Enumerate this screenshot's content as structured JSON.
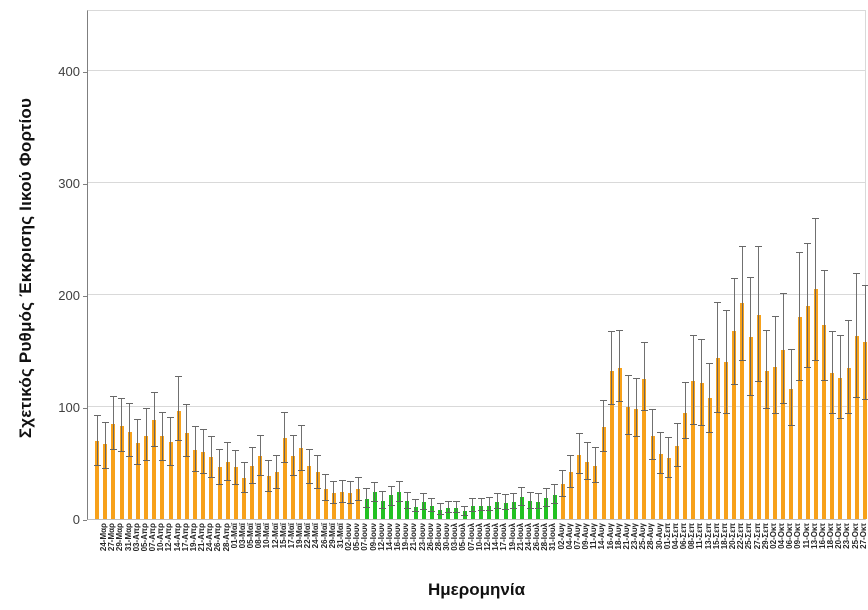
{
  "chart_data": {
    "type": "bar",
    "title": "",
    "xlabel": "Ημερομηνία",
    "ylabel": "Σχετικός Ρυθμός Έκκρισης Ιικού Φορτίου",
    "ylim": [
      0,
      455
    ],
    "yticks": [
      0,
      100,
      200,
      300,
      400
    ],
    "grid": true,
    "legend_position": "none",
    "error_bars": true,
    "bar_colors": {
      "O": "#F7A11A",
      "G": "#22C122"
    },
    "error_color": "#666666",
    "categories": [
      "24-Μαρ",
      "27-Μαρ",
      "29-Μαρ",
      "31-Μαρ",
      "03-Απρ",
      "05-Απρ",
      "07-Απρ",
      "10-Απρ",
      "12-Απρ",
      "14-Απρ",
      "17-Απρ",
      "19-Απρ",
      "21-Απρ",
      "24-Απρ",
      "26-Απρ",
      "28-Απρ",
      "01-Μαϊ",
      "03-Μαϊ",
      "05-Μαϊ",
      "08-Μαϊ",
      "10-Μαϊ",
      "12-Μαϊ",
      "15-Μαϊ",
      "17-Μαϊ",
      "19-Μαϊ",
      "22-Μαϊ",
      "24-Μαϊ",
      "26-Μαϊ",
      "29-Μαϊ",
      "31-Μαϊ",
      "02-Ιουν",
      "05-Ιουν",
      "07-Ιουν",
      "09-Ιουν",
      "12-Ιουν",
      "14-Ιουν",
      "16-Ιουν",
      "19-Ιουν",
      "21-Ιουν",
      "23-Ιουν",
      "26-Ιουν",
      "28-Ιουν",
      "30-Ιουν",
      "03-Ιουλ",
      "05-Ιουλ",
      "07-Ιουλ",
      "10-Ιουλ",
      "12-Ιουλ",
      "14-Ιουλ",
      "17-Ιουλ",
      "19-Ιουλ",
      "21-Ιουλ",
      "24-Ιουλ",
      "26-Ιουλ",
      "28-Ιουλ",
      "31-Ιουλ",
      "02-Αυγ",
      "04-Αυγ",
      "07-Αυγ",
      "09-Αυγ",
      "11-Αυγ",
      "14-Αυγ",
      "16-Αυγ",
      "18-Αυγ",
      "21-Αυγ",
      "23-Αυγ",
      "25-Αυγ",
      "28-Αυγ",
      "30-Αυγ",
      "01-Σεπ",
      "04-Σεπ",
      "06-Σεπ",
      "08-Σεπ",
      "11-Σεπ",
      "13-Σεπ",
      "15-Σεπ",
      "18-Σεπ",
      "20-Σεπ",
      "22-Σεπ",
      "25-Σεπ",
      "27-Σεπ",
      "29-Σεπ",
      "02-Οκτ",
      "04-Οκτ",
      "06-Οκτ",
      "09-Οκτ",
      "11-Οκτ",
      "13-Οκτ",
      "16-Οκτ",
      "18-Οκτ",
      "20-Οκτ",
      "23-Οκτ",
      "25-Οκτ",
      "27-Οκτ",
      "30-Οκτ"
    ],
    "values": [
      70,
      67,
      85,
      83,
      78,
      68,
      74,
      88,
      74,
      69,
      96,
      77,
      62,
      60,
      55,
      46,
      51,
      46,
      37,
      47,
      56,
      38,
      42,
      72,
      56,
      63,
      47,
      42,
      27,
      23,
      24,
      23,
      27,
      18,
      24,
      16,
      21,
      24,
      16,
      11,
      15,
      12,
      8,
      10,
      10,
      7,
      12,
      12,
      12,
      15,
      14,
      15,
      20,
      16,
      15,
      19,
      21,
      31,
      42,
      57,
      51,
      47,
      82,
      132,
      135,
      100,
      98,
      125,
      74,
      58,
      54,
      65,
      95,
      123,
      121,
      108,
      144,
      140,
      168,
      193,
      162,
      182,
      132,
      136,
      151,
      116,
      180,
      190,
      205,
      173,
      130,
      126,
      135,
      163,
      158
    ],
    "error_low": [
      47,
      45,
      62,
      60,
      55,
      48,
      52,
      64,
      52,
      47,
      70,
      55,
      42,
      40,
      37,
      30,
      34,
      30,
      23,
      31,
      38,
      24,
      27,
      50,
      38,
      43,
      31,
      27,
      16,
      13,
      14,
      13,
      16,
      10,
      15,
      9,
      12,
      15,
      9,
      6,
      8,
      6,
      4,
      5,
      5,
      3,
      6,
      7,
      7,
      9,
      8,
      9,
      12,
      9,
      9,
      11,
      13,
      20,
      28,
      40,
      35,
      32,
      60,
      102,
      104,
      75,
      73,
      96,
      53,
      40,
      37,
      46,
      71,
      84,
      83,
      77,
      95,
      94,
      120,
      141,
      110,
      122,
      98,
      94,
      103,
      83,
      123,
      135,
      141,
      123,
      94,
      89,
      94,
      108,
      106
    ],
    "error_high": [
      92,
      86,
      109,
      107,
      103,
      88,
      98,
      112,
      95,
      90,
      127,
      102,
      82,
      79,
      73,
      62,
      68,
      61,
      50,
      63,
      74,
      52,
      56,
      95,
      74,
      83,
      62,
      56,
      39,
      33,
      34,
      33,
      37,
      27,
      32,
      24,
      29,
      33,
      23,
      17,
      22,
      18,
      13,
      15,
      15,
      11,
      18,
      18,
      19,
      22,
      21,
      22,
      28,
      23,
      22,
      27,
      30,
      43,
      56,
      76,
      68,
      63,
      105,
      167,
      168,
      128,
      125,
      157,
      97,
      77,
      72,
      85,
      121,
      163,
      160,
      138,
      193,
      186,
      214,
      243,
      215,
      243,
      168,
      180,
      201,
      151,
      237,
      245,
      268,
      221,
      167,
      163,
      177,
      219,
      208
    ],
    "point_colors": [
      "O",
      "O",
      "O",
      "O",
      "O",
      "O",
      "O",
      "O",
      "O",
      "O",
      "O",
      "O",
      "O",
      "O",
      "O",
      "O",
      "O",
      "O",
      "O",
      "O",
      "O",
      "O",
      "O",
      "O",
      "O",
      "O",
      "O",
      "O",
      "O",
      "O",
      "O",
      "O",
      "O",
      "G",
      "G",
      "G",
      "G",
      "G",
      "G",
      "G",
      "G",
      "G",
      "G",
      "G",
      "G",
      "G",
      "G",
      "G",
      "G",
      "G",
      "G",
      "G",
      "G",
      "G",
      "G",
      "G",
      "G",
      "O",
      "O",
      "O",
      "O",
      "O",
      "O",
      "O",
      "O",
      "O",
      "O",
      "O",
      "O",
      "O",
      "O",
      "O",
      "O",
      "O",
      "O",
      "O",
      "O",
      "O",
      "O",
      "O",
      "O",
      "O",
      "O",
      "O",
      "O",
      "O",
      "O",
      "O",
      "O",
      "O",
      "O",
      "O",
      "O",
      "O",
      "O"
    ],
    "green_period": {
      "from": "09-Ιουν",
      "to": "02-Αυγ"
    }
  }
}
